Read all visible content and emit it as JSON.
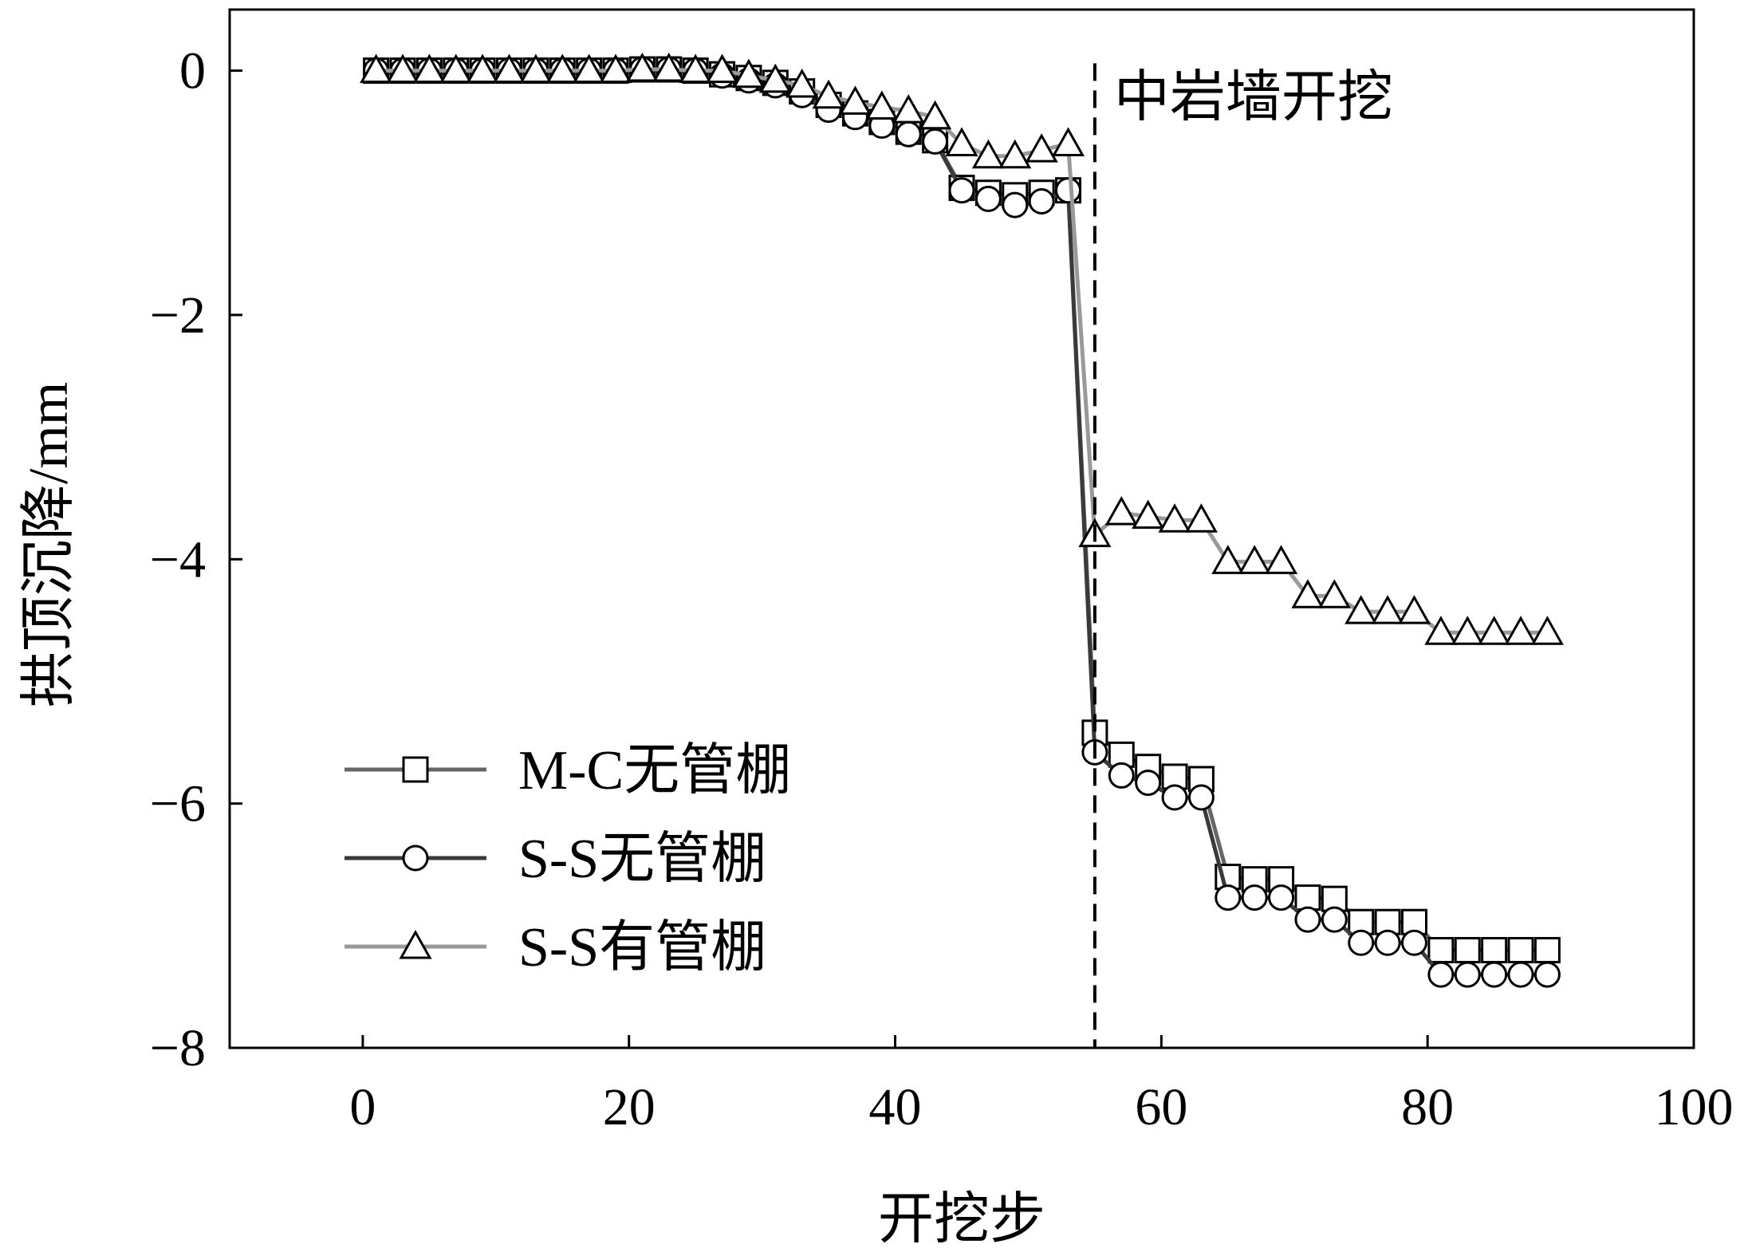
{
  "chart_data": {
    "type": "line",
    "title": "",
    "xlabel": "开挖步",
    "ylabel": "拱顶沉降/mm",
    "xlim": [
      -10,
      100
    ],
    "ylim": [
      -8,
      0.5
    ],
    "xticks": [
      0,
      20,
      40,
      60,
      80,
      100
    ],
    "yticks": [
      0,
      -2,
      -4,
      -6,
      -8
    ],
    "xtick_labels": [
      "0",
      "20",
      "40",
      "60",
      "80",
      "100"
    ],
    "ytick_labels": [
      "0",
      "−2",
      "−4",
      "−6",
      "−8"
    ],
    "grid": false,
    "legend_position": "bottom-left",
    "annotation": {
      "text": "中岩墙开挖",
      "x": 55
    },
    "series": [
      {
        "name": "M-C无管棚",
        "marker": "square",
        "line_color": "#666666",
        "x": [
          1,
          3,
          5,
          7,
          9,
          11,
          13,
          15,
          17,
          19,
          21,
          23,
          25,
          27,
          29,
          31,
          33,
          35,
          37,
          39,
          41,
          43,
          45,
          47,
          49,
          51,
          53,
          55,
          57,
          59,
          61,
          63,
          65,
          67,
          69,
          71,
          73,
          75,
          77,
          79,
          81,
          83,
          85,
          87,
          89
        ],
        "y": [
          0,
          0,
          0,
          0,
          0,
          0,
          0,
          0,
          0,
          0,
          0.01,
          0.01,
          0,
          -0.03,
          -0.06,
          -0.1,
          -0.17,
          -0.28,
          -0.35,
          -0.42,
          -0.5,
          -0.57,
          -0.96,
          -1.0,
          -1.02,
          -1.0,
          -0.98,
          -5.42,
          -5.6,
          -5.7,
          -5.78,
          -5.8,
          -6.6,
          -6.62,
          -6.62,
          -6.77,
          -6.78,
          -6.97,
          -6.97,
          -6.97,
          -7.2,
          -7.2,
          -7.2,
          -7.2,
          -7.2
        ]
      },
      {
        "name": "S-S无管棚",
        "marker": "circle",
        "line_color": "#3a3a3a",
        "x": [
          1,
          3,
          5,
          7,
          9,
          11,
          13,
          15,
          17,
          19,
          21,
          23,
          25,
          27,
          29,
          31,
          33,
          35,
          37,
          39,
          41,
          43,
          45,
          47,
          49,
          51,
          53,
          55,
          57,
          59,
          61,
          63,
          65,
          67,
          69,
          71,
          73,
          75,
          77,
          79,
          81,
          83,
          85,
          87,
          89
        ],
        "y": [
          0,
          0,
          0,
          0,
          0,
          0,
          0,
          0,
          0,
          0,
          0.01,
          0.01,
          0,
          -0.04,
          -0.08,
          -0.12,
          -0.2,
          -0.32,
          -0.38,
          -0.45,
          -0.52,
          -0.58,
          -0.98,
          -1.05,
          -1.1,
          -1.07,
          -0.98,
          -5.58,
          -5.77,
          -5.83,
          -5.95,
          -5.95,
          -6.77,
          -6.77,
          -6.77,
          -6.95,
          -6.95,
          -7.14,
          -7.14,
          -7.14,
          -7.4,
          -7.4,
          -7.4,
          -7.4,
          -7.4
        ]
      },
      {
        "name": "S-S有管棚",
        "marker": "triangle",
        "line_color": "#999999",
        "x": [
          1,
          3,
          5,
          7,
          9,
          11,
          13,
          15,
          17,
          19,
          21,
          23,
          25,
          27,
          29,
          31,
          33,
          35,
          37,
          39,
          41,
          43,
          45,
          47,
          49,
          51,
          53,
          55,
          57,
          59,
          61,
          63,
          65,
          67,
          69,
          71,
          73,
          75,
          77,
          79,
          81,
          83,
          85,
          87,
          89
        ],
        "y": [
          0,
          0,
          0,
          0,
          0,
          0,
          0,
          0,
          0,
          0,
          0.01,
          0.01,
          0,
          0,
          -0.04,
          -0.08,
          -0.12,
          -0.21,
          -0.26,
          -0.3,
          -0.33,
          -0.38,
          -0.6,
          -0.7,
          -0.7,
          -0.65,
          -0.6,
          -3.8,
          -3.62,
          -3.65,
          -3.68,
          -3.68,
          -4.02,
          -4.02,
          -4.02,
          -4.3,
          -4.3,
          -4.43,
          -4.43,
          -4.43,
          -4.6,
          -4.6,
          -4.6,
          -4.6,
          -4.6
        ]
      }
    ]
  }
}
